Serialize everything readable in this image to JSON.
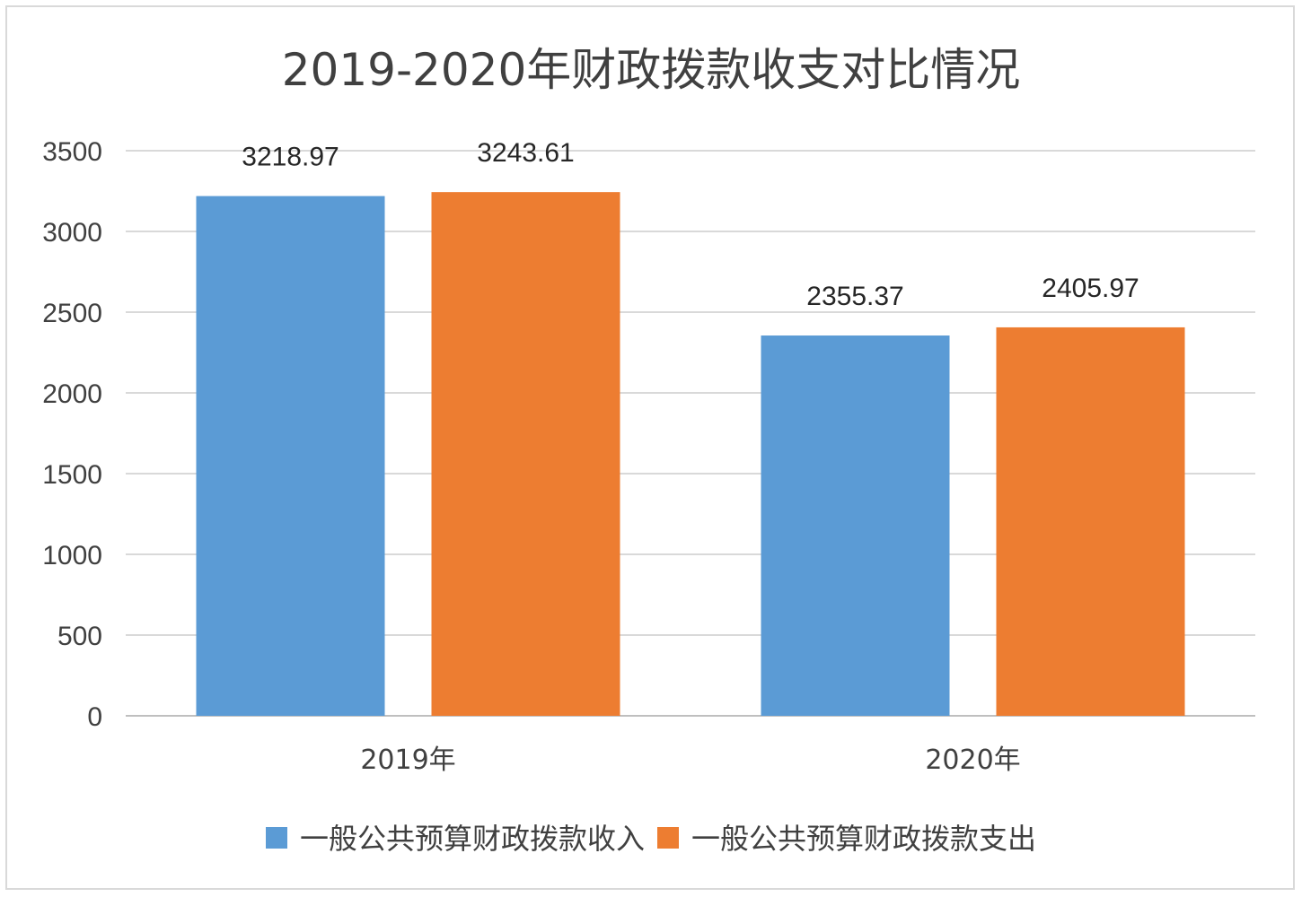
{
  "chart_data": {
    "type": "bar",
    "title": "2019-2020年财政拨款收支对比情况",
    "categories": [
      "2019年",
      "2020年"
    ],
    "series": [
      {
        "name": "一般公共预算财政拨款收入",
        "color": "#5b9bd5",
        "values": [
          3218.97,
          2355.37
        ],
        "labels": [
          "3218.97",
          "2355.37"
        ]
      },
      {
        "name": "一般公共预算财政拨款支出",
        "color": "#ed7d31",
        "values": [
          3243.61,
          2405.97
        ],
        "labels": [
          "3243.61",
          "2405.97"
        ]
      }
    ],
    "ylim": [
      0,
      3500
    ],
    "yticks": [
      0,
      500,
      1000,
      1500,
      2000,
      2500,
      3000,
      3500
    ],
    "grid": true,
    "legend": "bottom",
    "xlabel": "",
    "ylabel": ""
  }
}
